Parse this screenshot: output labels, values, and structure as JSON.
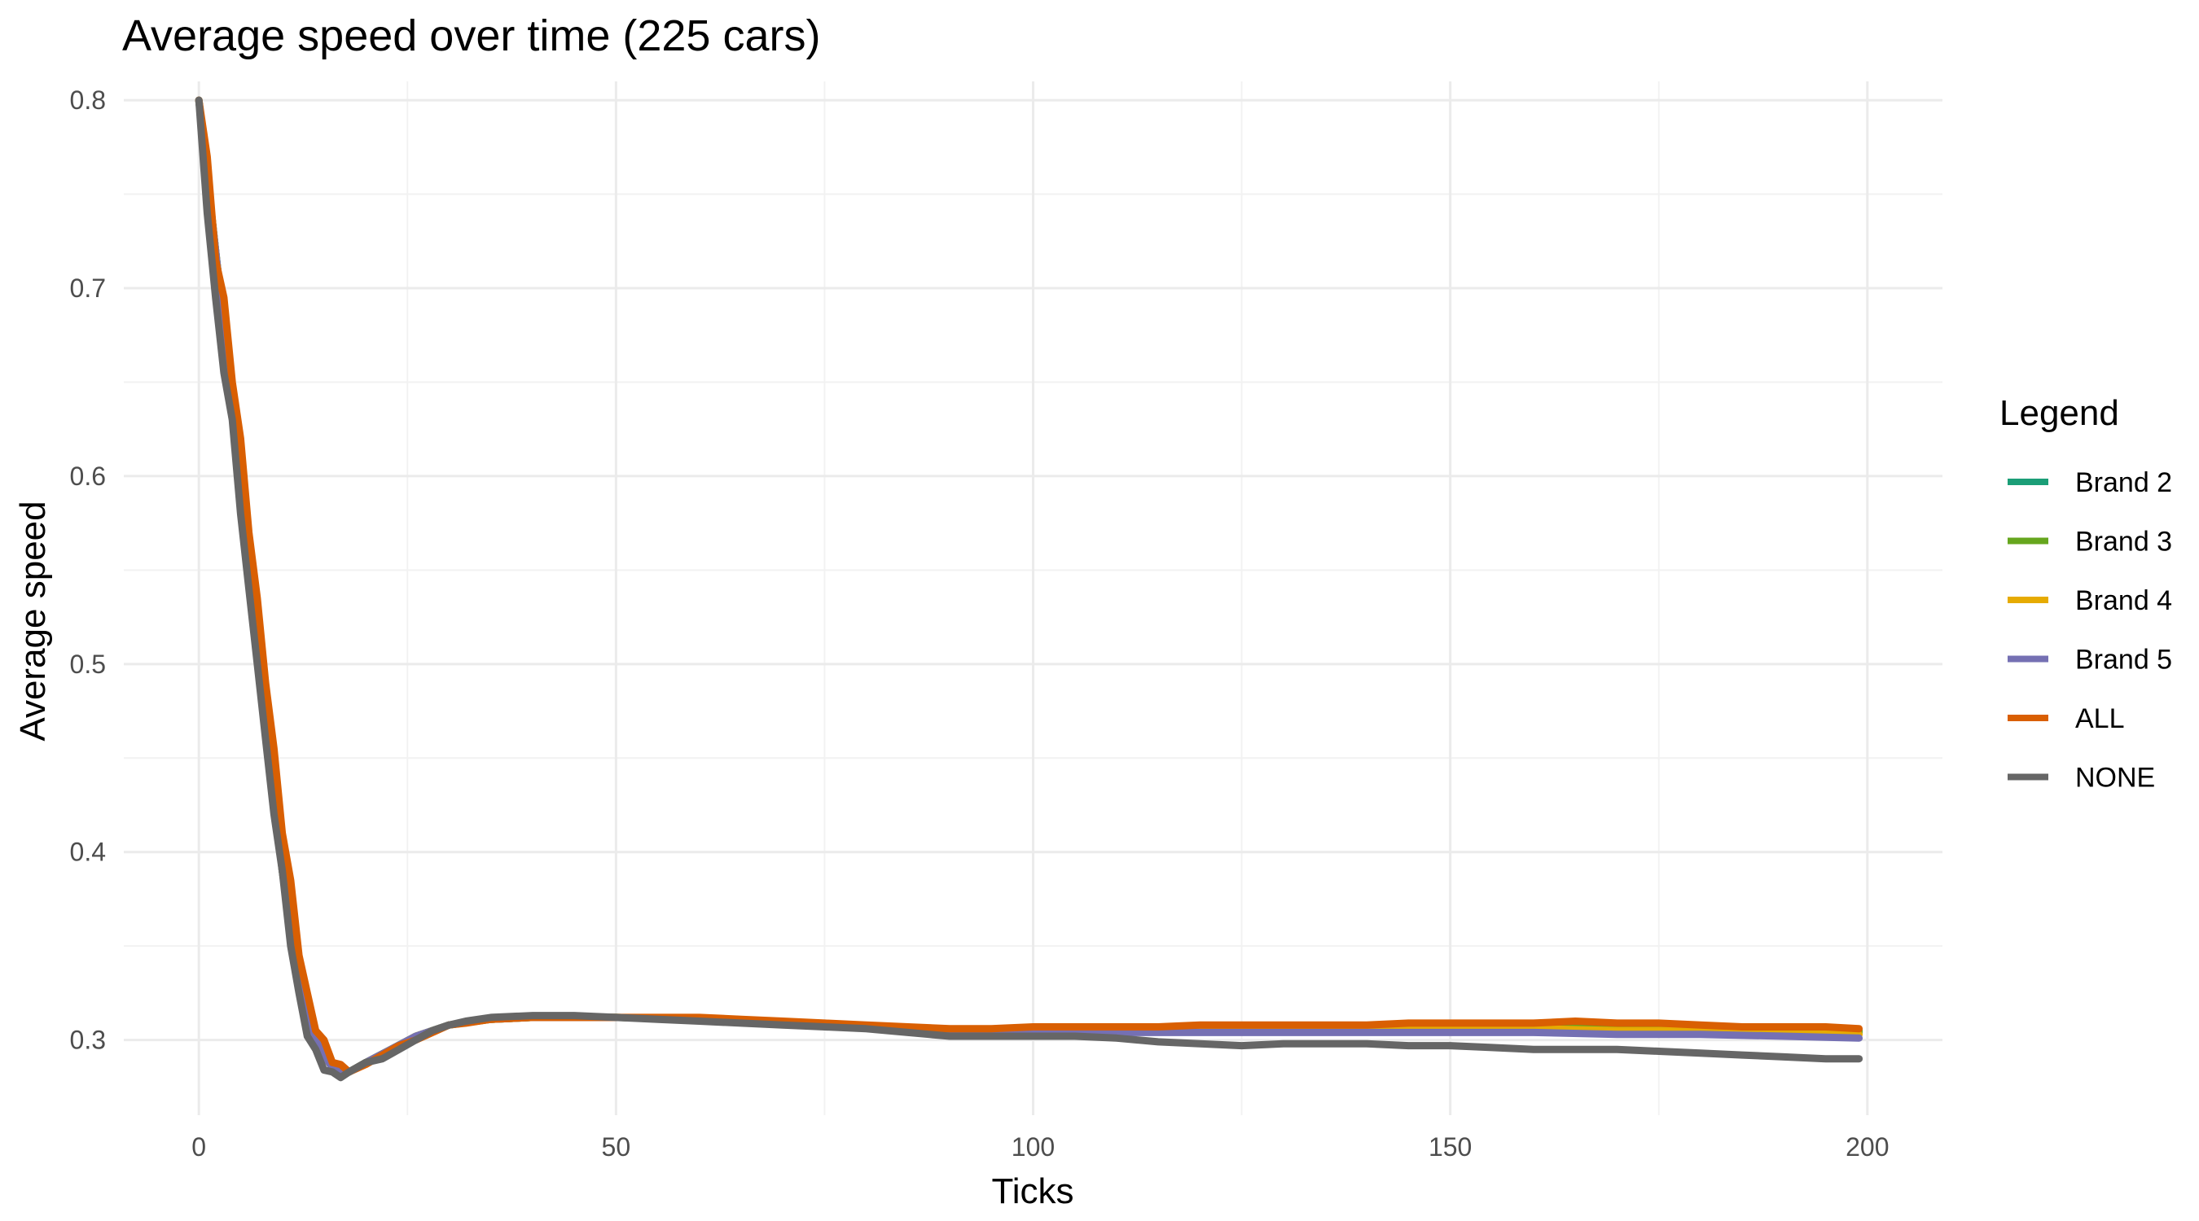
{
  "chart_data": {
    "type": "line",
    "title": "Average speed over time (225 cars)",
    "xlabel": "Ticks",
    "ylabel": "Average speed",
    "xlim": [
      -9,
      209
    ],
    "ylim": [
      0.26,
      0.81
    ],
    "x_ticks": [
      0,
      50,
      100,
      150,
      200
    ],
    "y_ticks": [
      0.3,
      0.4,
      0.5,
      0.6,
      0.7,
      0.8
    ],
    "x_tick_labels": [
      "0",
      "50",
      "100",
      "150",
      "200"
    ],
    "y_tick_labels": [
      "0.3",
      "0.4",
      "0.5",
      "0.6",
      "0.7",
      "0.8"
    ],
    "grid": true,
    "legend": {
      "title": "Legend",
      "position": "right"
    },
    "series": [
      {
        "name": "Brand 2",
        "color": "#1b9e77",
        "points": [
          [
            0,
            0.8
          ],
          [
            2,
            0.72
          ],
          [
            4,
            0.64
          ],
          [
            6,
            0.55
          ],
          [
            8,
            0.47
          ],
          [
            10,
            0.39
          ],
          [
            12,
            0.33
          ],
          [
            14,
            0.3
          ],
          [
            16,
            0.285
          ],
          [
            18,
            0.283
          ],
          [
            20,
            0.288
          ],
          [
            23,
            0.295
          ],
          [
            26,
            0.302
          ],
          [
            30,
            0.308
          ],
          [
            35,
            0.311
          ],
          [
            40,
            0.312
          ],
          [
            50,
            0.312
          ],
          [
            60,
            0.311
          ],
          [
            70,
            0.309
          ],
          [
            80,
            0.307
          ],
          [
            90,
            0.305
          ],
          [
            100,
            0.305
          ],
          [
            110,
            0.305
          ],
          [
            120,
            0.306
          ],
          [
            130,
            0.306
          ],
          [
            140,
            0.306
          ],
          [
            150,
            0.307
          ],
          [
            160,
            0.307
          ],
          [
            170,
            0.307
          ],
          [
            180,
            0.306
          ],
          [
            190,
            0.305
          ],
          [
            199,
            0.304
          ]
        ]
      },
      {
        "name": "Brand 3",
        "color": "#66a61e",
        "points": [
          [
            0,
            0.8
          ],
          [
            2,
            0.72
          ],
          [
            4,
            0.64
          ],
          [
            6,
            0.55
          ],
          [
            8,
            0.47
          ],
          [
            10,
            0.39
          ],
          [
            12,
            0.33
          ],
          [
            14,
            0.3
          ],
          [
            16,
            0.285
          ],
          [
            18,
            0.283
          ],
          [
            20,
            0.288
          ],
          [
            23,
            0.295
          ],
          [
            26,
            0.302
          ],
          [
            30,
            0.308
          ],
          [
            35,
            0.311
          ],
          [
            40,
            0.312
          ],
          [
            50,
            0.312
          ],
          [
            60,
            0.311
          ],
          [
            70,
            0.309
          ],
          [
            80,
            0.307
          ],
          [
            90,
            0.305
          ],
          [
            100,
            0.306
          ],
          [
            110,
            0.306
          ],
          [
            120,
            0.307
          ],
          [
            130,
            0.307
          ],
          [
            140,
            0.307
          ],
          [
            150,
            0.308
          ],
          [
            160,
            0.308
          ],
          [
            170,
            0.308
          ],
          [
            180,
            0.307
          ],
          [
            190,
            0.306
          ],
          [
            199,
            0.305
          ]
        ]
      },
      {
        "name": "Brand 4",
        "color": "#e6ab02",
        "points": [
          [
            0,
            0.8
          ],
          [
            2,
            0.72
          ],
          [
            4,
            0.64
          ],
          [
            6,
            0.55
          ],
          [
            8,
            0.47
          ],
          [
            10,
            0.39
          ],
          [
            12,
            0.33
          ],
          [
            14,
            0.3
          ],
          [
            16,
            0.285
          ],
          [
            18,
            0.283
          ],
          [
            20,
            0.288
          ],
          [
            23,
            0.295
          ],
          [
            26,
            0.302
          ],
          [
            30,
            0.308
          ],
          [
            35,
            0.311
          ],
          [
            40,
            0.312
          ],
          [
            50,
            0.312
          ],
          [
            60,
            0.311
          ],
          [
            70,
            0.309
          ],
          [
            80,
            0.307
          ],
          [
            90,
            0.305
          ],
          [
            100,
            0.305
          ],
          [
            110,
            0.305
          ],
          [
            120,
            0.306
          ],
          [
            130,
            0.306
          ],
          [
            140,
            0.306
          ],
          [
            150,
            0.306
          ],
          [
            160,
            0.306
          ],
          [
            170,
            0.305
          ],
          [
            180,
            0.305
          ],
          [
            190,
            0.304
          ],
          [
            199,
            0.303
          ]
        ]
      },
      {
        "name": "Brand 5",
        "color": "#7570b3",
        "points": [
          [
            0,
            0.8
          ],
          [
            2,
            0.72
          ],
          [
            4,
            0.64
          ],
          [
            6,
            0.55
          ],
          [
            8,
            0.47
          ],
          [
            10,
            0.39
          ],
          [
            12,
            0.33
          ],
          [
            14,
            0.3
          ],
          [
            16,
            0.285
          ],
          [
            18,
            0.283
          ],
          [
            20,
            0.288
          ],
          [
            23,
            0.295
          ],
          [
            26,
            0.302
          ],
          [
            30,
            0.308
          ],
          [
            35,
            0.311
          ],
          [
            40,
            0.312
          ],
          [
            50,
            0.312
          ],
          [
            60,
            0.311
          ],
          [
            70,
            0.309
          ],
          [
            80,
            0.307
          ],
          [
            90,
            0.304
          ],
          [
            100,
            0.304
          ],
          [
            110,
            0.304
          ],
          [
            120,
            0.304
          ],
          [
            130,
            0.304
          ],
          [
            140,
            0.304
          ],
          [
            150,
            0.304
          ],
          [
            160,
            0.304
          ],
          [
            170,
            0.303
          ],
          [
            180,
            0.303
          ],
          [
            190,
            0.302
          ],
          [
            199,
            0.301
          ]
        ]
      },
      {
        "name": "ALL",
        "color": "#d95f02",
        "points": [
          [
            0,
            0.8
          ],
          [
            1,
            0.77
          ],
          [
            2,
            0.715
          ],
          [
            3,
            0.695
          ],
          [
            4,
            0.65
          ],
          [
            5,
            0.62
          ],
          [
            6,
            0.57
          ],
          [
            7,
            0.535
          ],
          [
            8,
            0.49
          ],
          [
            9,
            0.455
          ],
          [
            10,
            0.41
          ],
          [
            11,
            0.385
          ],
          [
            12,
            0.345
          ],
          [
            13,
            0.325
          ],
          [
            14,
            0.305
          ],
          [
            15,
            0.3
          ],
          [
            16,
            0.288
          ],
          [
            17,
            0.287
          ],
          [
            18,
            0.283
          ],
          [
            20,
            0.287
          ],
          [
            22,
            0.292
          ],
          [
            24,
            0.297
          ],
          [
            26,
            0.3
          ],
          [
            28,
            0.304
          ],
          [
            30,
            0.308
          ],
          [
            32,
            0.309
          ],
          [
            35,
            0.311
          ],
          [
            40,
            0.312
          ],
          [
            45,
            0.312
          ],
          [
            50,
            0.312
          ],
          [
            55,
            0.312
          ],
          [
            60,
            0.312
          ],
          [
            65,
            0.311
          ],
          [
            70,
            0.31
          ],
          [
            75,
            0.309
          ],
          [
            80,
            0.308
          ],
          [
            85,
            0.307
          ],
          [
            90,
            0.306
          ],
          [
            95,
            0.306
          ],
          [
            100,
            0.307
          ],
          [
            105,
            0.307
          ],
          [
            110,
            0.307
          ],
          [
            115,
            0.307
          ],
          [
            120,
            0.308
          ],
          [
            125,
            0.308
          ],
          [
            130,
            0.308
          ],
          [
            135,
            0.308
          ],
          [
            140,
            0.308
          ],
          [
            145,
            0.309
          ],
          [
            150,
            0.309
          ],
          [
            155,
            0.309
          ],
          [
            160,
            0.309
          ],
          [
            165,
            0.31
          ],
          [
            170,
            0.309
          ],
          [
            175,
            0.309
          ],
          [
            180,
            0.308
          ],
          [
            185,
            0.307
          ],
          [
            190,
            0.307
          ],
          [
            195,
            0.307
          ],
          [
            199,
            0.306
          ]
        ]
      },
      {
        "name": "NONE",
        "color": "#666666",
        "points": [
          [
            0,
            0.8
          ],
          [
            1,
            0.74
          ],
          [
            2,
            0.695
          ],
          [
            3,
            0.655
          ],
          [
            4,
            0.63
          ],
          [
            5,
            0.58
          ],
          [
            6,
            0.54
          ],
          [
            7,
            0.5
          ],
          [
            8,
            0.46
          ],
          [
            9,
            0.42
          ],
          [
            10,
            0.39
          ],
          [
            11,
            0.35
          ],
          [
            12,
            0.325
          ],
          [
            13,
            0.302
          ],
          [
            14,
            0.295
          ],
          [
            15,
            0.284
          ],
          [
            16,
            0.283
          ],
          [
            17,
            0.28
          ],
          [
            18,
            0.283
          ],
          [
            20,
            0.288
          ],
          [
            22,
            0.29
          ],
          [
            24,
            0.295
          ],
          [
            26,
            0.3
          ],
          [
            28,
            0.305
          ],
          [
            30,
            0.308
          ],
          [
            32,
            0.31
          ],
          [
            35,
            0.312
          ],
          [
            40,
            0.313
          ],
          [
            45,
            0.313
          ],
          [
            50,
            0.312
          ],
          [
            55,
            0.311
          ],
          [
            60,
            0.31
          ],
          [
            65,
            0.309
          ],
          [
            70,
            0.308
          ],
          [
            75,
            0.307
          ],
          [
            80,
            0.306
          ],
          [
            85,
            0.304
          ],
          [
            90,
            0.302
          ],
          [
            95,
            0.302
          ],
          [
            100,
            0.302
          ],
          [
            105,
            0.302
          ],
          [
            110,
            0.301
          ],
          [
            115,
            0.299
          ],
          [
            120,
            0.298
          ],
          [
            125,
            0.297
          ],
          [
            130,
            0.298
          ],
          [
            135,
            0.298
          ],
          [
            140,
            0.298
          ],
          [
            145,
            0.297
          ],
          [
            150,
            0.297
          ],
          [
            155,
            0.296
          ],
          [
            160,
            0.295
          ],
          [
            165,
            0.295
          ],
          [
            170,
            0.295
          ],
          [
            175,
            0.294
          ],
          [
            180,
            0.293
          ],
          [
            185,
            0.292
          ],
          [
            190,
            0.291
          ],
          [
            195,
            0.29
          ],
          [
            199,
            0.29
          ]
        ]
      }
    ]
  }
}
